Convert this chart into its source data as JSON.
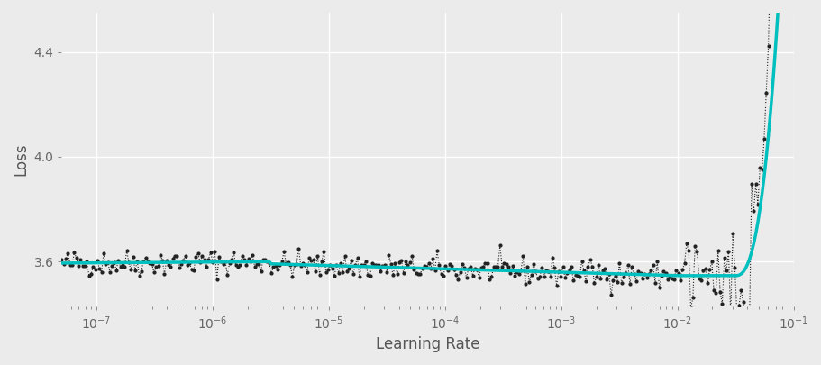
{
  "title": "",
  "xlabel": "Learning Rate",
  "ylabel": "Loss",
  "x_log_min": -7.3,
  "x_log_max": -1.0,
  "y_min": 3.43,
  "y_max": 4.55,
  "yticks": [
    3.6,
    4.0,
    4.4
  ],
  "background_color": "#EBEBEB",
  "grid_color": "#FFFFFF",
  "dot_color": "#222222",
  "smooth_color": "#00BFBF",
  "smooth_linewidth": 2.5,
  "dot_size": 4,
  "n_points": 350,
  "seed": 42
}
